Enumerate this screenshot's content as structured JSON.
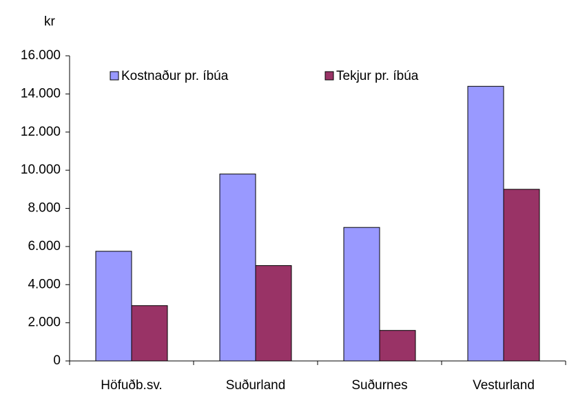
{
  "chart_data": {
    "type": "bar",
    "y_label": "kr",
    "categories": [
      "Höfuðb.sv.",
      "Suðurland",
      "Suðurnes",
      "Vesturland"
    ],
    "series": [
      {
        "name": "Kostnaður pr. íbúa",
        "color": "#9999ff",
        "values": [
          5750,
          9800,
          7000,
          14400
        ]
      },
      {
        "name": "Tekjur pr. íbúa",
        "color": "#993366",
        "values": [
          2900,
          5000,
          1600,
          9000
        ]
      }
    ],
    "ylim": [
      0,
      16000
    ],
    "yticks": [
      0,
      {
        "value": 2000,
        "label": "2.000"
      },
      {
        "value": 4000,
        "label": "4.000"
      },
      {
        "value": 6000,
        "label": "6.000"
      },
      {
        "value": 8000,
        "label": "8.000"
      },
      {
        "value": 10000,
        "label": "10.000"
      },
      {
        "value": 12000,
        "label": "12.000"
      },
      {
        "value": 14000,
        "label": "14.000"
      },
      {
        "value": 16000,
        "label": "16.000"
      }
    ],
    "legend": "top",
    "grid": false
  }
}
